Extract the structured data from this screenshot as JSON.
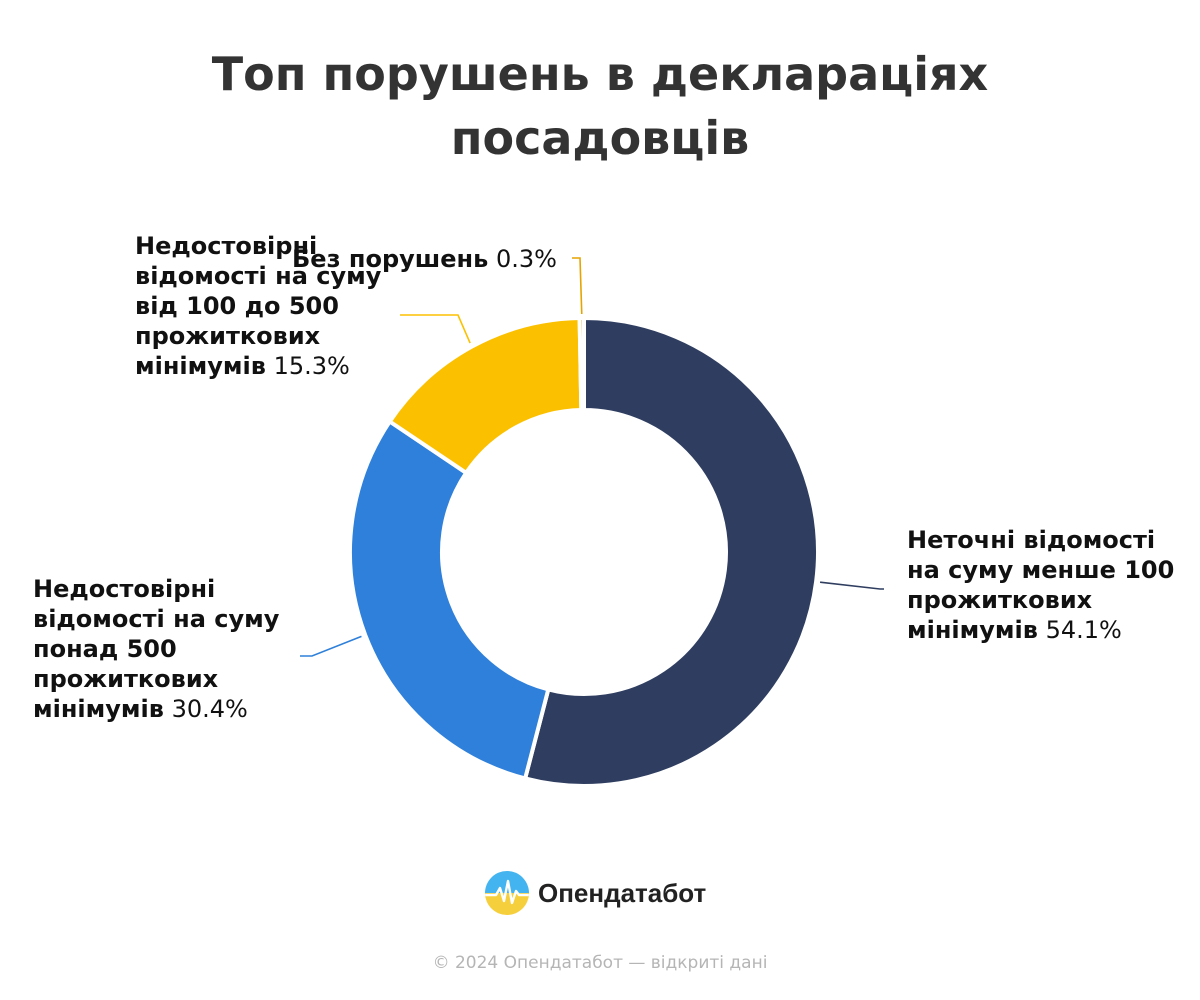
{
  "title_lines": [
    "Топ порушень в деклараціях",
    "посадовців"
  ],
  "chart_data": {
    "type": "pie",
    "variant": "donut",
    "title": "Топ порушень в деклараціях посадовців",
    "start": "top, clockwise",
    "slices": [
      {
        "label": "Неточні відомості на суму менше 100 прожиткових мінімумів",
        "value": 54.1,
        "value_label": "54.1%",
        "color": "#2f3e60"
      },
      {
        "label": "Недостовірні відомості на суму понад 500 прожиткових мінімумів",
        "value": 30.4,
        "value_label": "30.4%",
        "color": "#2e80da"
      },
      {
        "label": "Недостовірні відомості на суму від 100 до 500 прожиткових мінімумів",
        "value": 15.3,
        "value_label": "15.3%",
        "color": "#fbc000"
      },
      {
        "label": "Без порушень",
        "value": 0.3,
        "value_label": "0.3%",
        "color": "#e5a400"
      }
    ]
  },
  "labels": {
    "s0": {
      "lines": [
        "Неточні відомості",
        "на суму менше 100",
        "прожиткових"
      ],
      "last": "мінімумів",
      "pct": "54.1%"
    },
    "s1": {
      "lines": [
        "Недостовірні",
        "відомості на суму",
        "понад 500",
        "прожиткових"
      ],
      "last": "мінімумів",
      "pct": "30.4%"
    },
    "s2": {
      "lines": [
        "Недостовірні",
        "відомості на суму",
        "від 100 до 500",
        "прожиткових"
      ],
      "last": "мінімумів",
      "pct": "15.3%"
    },
    "s3": {
      "lines": [],
      "last": "Без порушень",
      "pct": "0.3%"
    }
  },
  "brand": {
    "name": "Опендатабот",
    "logo_icon": "opendatabot-logo-icon"
  },
  "footer": "© 2024 Опендатабот — відкриті дані"
}
